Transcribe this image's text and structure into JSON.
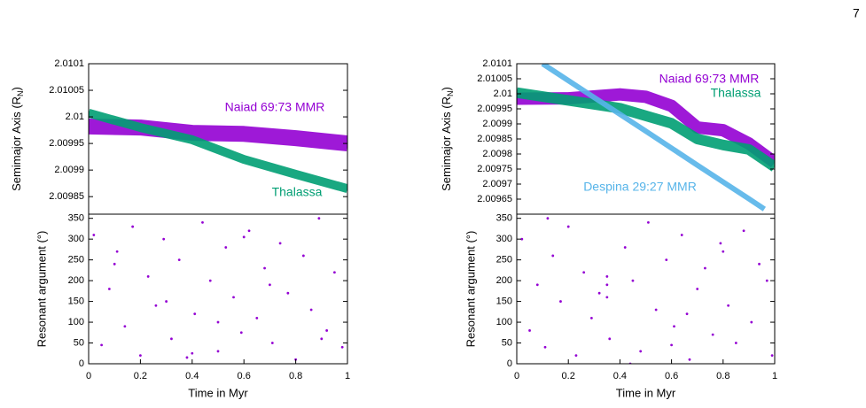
{
  "page_number": "7",
  "chart_data": [
    {
      "type": "line",
      "ylabel": {
        "text": "Semimajor Axis (R",
        "sub": "N",
        "tail": ")"
      },
      "xlim": [
        0,
        1
      ],
      "ylim": [
        2.009817,
        2.0101
      ],
      "yticks": [
        2.0101,
        2.01005,
        2.01,
        2.00995,
        2.0099,
        2.00985
      ],
      "series": [
        {
          "name": "Naiad 69:73 MMR",
          "color": "#9400d3",
          "x": [
            0,
            0.2,
            0.4,
            0.6,
            0.8,
            1
          ],
          "values": [
            2.009982,
            2.00998,
            2.00997,
            2.009968,
            2.00996,
            2.00995
          ]
        },
        {
          "name": "Thalassa",
          "color": "#009e73",
          "x": [
            0,
            0.2,
            0.4,
            0.6,
            0.8,
            1
          ],
          "values": [
            2.010007,
            2.00998,
            2.009957,
            2.00992,
            2.009892,
            2.009865
          ]
        }
      ]
    },
    {
      "type": "scatter",
      "ylabel": "Resonant argument (°)",
      "xlabel": "Time in Myr",
      "xlim": [
        0,
        1
      ],
      "ylim": [
        0,
        360
      ],
      "xticks": [
        0,
        0.2,
        0.4,
        0.6,
        0.8,
        1
      ],
      "yticks": [
        0,
        50,
        100,
        150,
        200,
        250,
        300,
        350
      ],
      "series": [
        {
          "color": "#9400d3",
          "x": [
            0.02,
            0.05,
            0.08,
            0.11,
            0.14,
            0.17,
            0.2,
            0.23,
            0.26,
            0.29,
            0.32,
            0.35,
            0.38,
            0.41,
            0.44,
            0.47,
            0.5,
            0.53,
            0.56,
            0.59,
            0.62,
            0.65,
            0.68,
            0.71,
            0.74,
            0.77,
            0.8,
            0.83,
            0.86,
            0.89,
            0.92,
            0.95,
            0.98,
            0.1,
            0.3,
            0.5,
            0.7,
            0.9,
            0.4,
            0.6
          ],
          "values": [
            310,
            45,
            180,
            270,
            90,
            330,
            20,
            210,
            140,
            300,
            60,
            250,
            15,
            120,
            340,
            200,
            30,
            280,
            160,
            75,
            320,
            110,
            230,
            50,
            290,
            170,
            10,
            260,
            130,
            350,
            80,
            220,
            40,
            240,
            150,
            100,
            190,
            60,
            25,
            305
          ]
        }
      ]
    },
    {
      "type": "line",
      "ylabel": {
        "text": "Semimajor Axis (R",
        "sub": "N",
        "tail": ")"
      },
      "xlim": [
        0,
        1
      ],
      "ylim": [
        2.0096,
        2.0101
      ],
      "yticks": [
        2.0101,
        2.01005,
        2.01,
        2.00995,
        2.0099,
        2.00985,
        2.0098,
        2.00975,
        2.0097,
        2.00965
      ],
      "series": [
        {
          "name": "Naiad 69:73 MMR",
          "color": "#9400d3",
          "x": [
            0,
            0.2,
            0.4,
            0.5,
            0.6,
            0.7,
            0.8,
            0.9,
            1
          ],
          "values": [
            2.009984,
            2.009985,
            2.009998,
            2.00999,
            2.00996,
            2.009888,
            2.009879,
            2.009835,
            2.009772
          ]
        },
        {
          "name": "Thalassa",
          "color": "#009e73",
          "x": [
            0,
            0.2,
            0.4,
            0.6,
            0.7,
            0.8,
            0.9,
            1
          ],
          "values": [
            2.010004,
            2.009978,
            2.009952,
            2.009902,
            2.00985,
            2.00983,
            2.009815,
            2.009757
          ]
        },
        {
          "name": "Despina 29:27 MMR",
          "color": "#56b4e9",
          "x": [
            0.1,
            0.3,
            0.5,
            0.7,
            0.9,
            0.96
          ],
          "values": [
            2.0101,
            2.009988,
            2.009876,
            2.009763,
            2.009651,
            2.009617
          ]
        }
      ]
    },
    {
      "type": "scatter",
      "ylabel": "Resonant argument (°)",
      "xlabel": "Time in Myr",
      "xlim": [
        0,
        1
      ],
      "ylim": [
        0,
        360
      ],
      "xticks": [
        0,
        0.2,
        0.4,
        0.6,
        0.8,
        1
      ],
      "yticks": [
        0,
        50,
        100,
        150,
        200,
        250,
        300,
        350
      ],
      "series": [
        {
          "color": "#9400d3",
          "x": [
            0.02,
            0.05,
            0.08,
            0.11,
            0.14,
            0.17,
            0.2,
            0.23,
            0.26,
            0.29,
            0.32,
            0.36,
            0.42,
            0.45,
            0.48,
            0.51,
            0.54,
            0.58,
            0.61,
            0.64,
            0.67,
            0.7,
            0.73,
            0.76,
            0.79,
            0.82,
            0.85,
            0.88,
            0.91,
            0.94,
            0.97,
            0.99,
            0.35,
            0.35,
            0.35,
            0.12,
            0.44,
            0.66,
            0.8,
            0.6
          ],
          "values": [
            300,
            80,
            190,
            40,
            260,
            150,
            330,
            20,
            220,
            110,
            170,
            60,
            280,
            200,
            30,
            340,
            130,
            250,
            90,
            310,
            10,
            180,
            230,
            70,
            290,
            140,
            50,
            320,
            100,
            240,
            200,
            20,
            160,
            190,
            210,
            350,
            0,
            120,
            270,
            45
          ]
        }
      ]
    }
  ]
}
